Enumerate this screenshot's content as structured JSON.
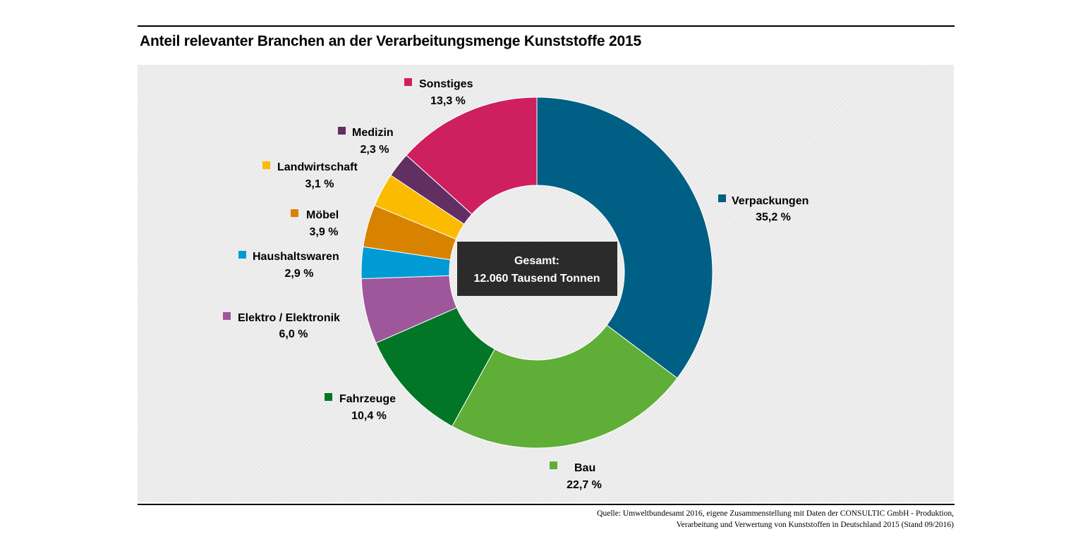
{
  "chart_data": {
    "type": "pie",
    "style": "donut",
    "title": "Anteil relevanter Branchen an der Verarbeitungsmenge Kunststoffe 2015",
    "center_label": [
      "Gesamt:",
      "12.060 Tausend Tonnen"
    ],
    "start_angle_deg": 0,
    "direction": "clockwise",
    "slices": [
      {
        "name": "Verpackungen",
        "value": 35.2,
        "label": "35,2 %",
        "color": "#005f84"
      },
      {
        "name": "Bau",
        "value": 22.7,
        "label": "22,7 %",
        "color": "#5eae37"
      },
      {
        "name": "Fahrzeuge",
        "value": 10.4,
        "label": "10,4 %",
        "color": "#007626"
      },
      {
        "name": "Elektro / Elektronik",
        "value": 6.0,
        "label": "6,0 %",
        "color": "#9d579a"
      },
      {
        "name": "Haushaltswaren",
        "value": 2.9,
        "label": "2,9 %",
        "color": "#009bd5"
      },
      {
        "name": "Möbel",
        "value": 3.9,
        "label": "3,9 %",
        "color": "#d78300"
      },
      {
        "name": "Landwirtschaft",
        "value": 3.1,
        "label": "3,1 %",
        "color": "#fabb00"
      },
      {
        "name": "Medizin",
        "value": 2.3,
        "label": "2,3 %",
        "color": "#622f63"
      },
      {
        "name": "Sonstiges",
        "value": 13.3,
        "label": "13,3 %",
        "color": "#ce1f5e"
      }
    ],
    "legend": "labels next to slices",
    "grid": false
  },
  "source": [
    "Quelle: Umweltbundesamt 2016, eigene Zusammenstellung mit Daten der CONSULTIC GmbH - Produktion,",
    "Verarbeitung und Verwertung von Kunststoffen in Deutschland 2015 (Stand 09/2016)"
  ]
}
